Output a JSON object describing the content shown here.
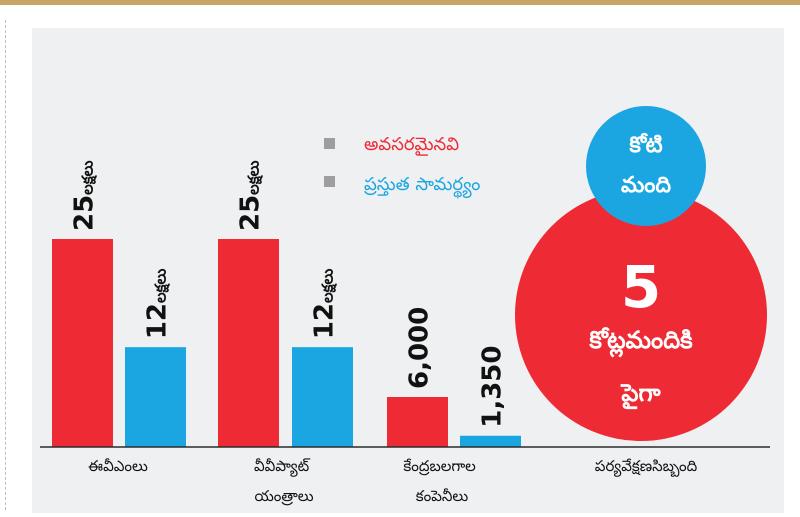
{
  "colors": {
    "required": "#ee2a35",
    "capacity": "#1ba6e2",
    "legend_square": "#9e9e9e"
  },
  "legend": {
    "required_label": "అవసరమైనవి",
    "capacity_label": "ప్రస్తుత సామర్థ్యం"
  },
  "chart_data": {
    "type": "bar",
    "categories": [
      [
        "ఈవీఎంలు"
      ],
      [
        "వీవీప్యాట్",
        "యంత్రాలు"
      ],
      [
        "కేంద్రబలగాల",
        "కంపెనీలు"
      ],
      [
        "పర్యవేక్షణసిబ్బంది"
      ]
    ],
    "series": [
      {
        "name": "అవసరమైనవి",
        "values": [
          2500000,
          2500000,
          6000,
          null
        ]
      },
      {
        "name": "ప్రస్తుత సామర్థ్యం",
        "values": [
          1200000,
          1200000,
          1350,
          null
        ]
      }
    ],
    "data_labels": [
      {
        "category": 0,
        "series": 0,
        "number": "25",
        "unit": "లక్షలు"
      },
      {
        "category": 0,
        "series": 1,
        "number": "12",
        "unit": "లక్షలు"
      },
      {
        "category": 1,
        "series": 0,
        "number": "25",
        "unit": "లక్షలు"
      },
      {
        "category": 1,
        "series": 1,
        "number": "12",
        "unit": "లక్షలు"
      },
      {
        "category": 2,
        "series": 0,
        "number": "6,000",
        "unit": ""
      },
      {
        "category": 2,
        "series": 1,
        "number": "1,350",
        "unit": ""
      }
    ],
    "legend_position": "top-center"
  },
  "annotations": {
    "small_circle": [
      "కోటి",
      "మంది"
    ],
    "big_circle": {
      "number": "5",
      "line1": "కోట్లమందికి",
      "line2": "పైగా"
    }
  }
}
